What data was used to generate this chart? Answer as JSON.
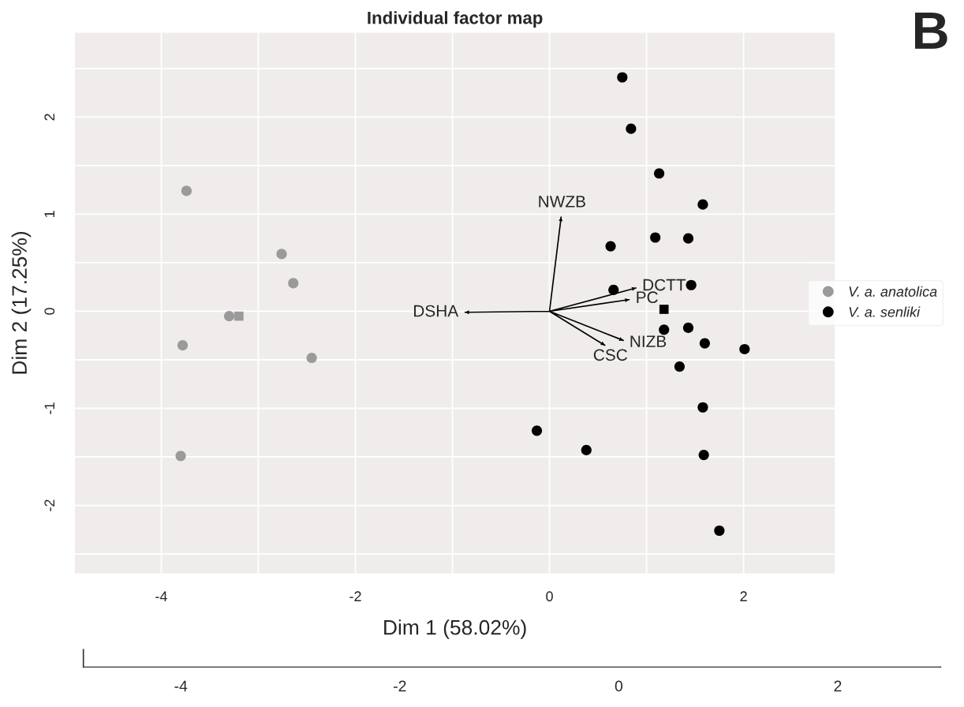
{
  "chart_data": {
    "type": "scatter",
    "title": "Individual factor map",
    "xlabel": "Dim 1 (58.02%)",
    "ylabel": "Dim 2 (17.25%)",
    "series": [
      {
        "name": "V. a. anatolica",
        "color": "#9a9a9a",
        "marker": "circle",
        "x": [
          -3.74,
          -2.76,
          -2.64,
          -3.3,
          -3.78,
          -2.45,
          -3.8
        ],
        "values": [
          1.24,
          0.59,
          0.29,
          -0.05,
          -0.35,
          -0.48,
          -1.49
        ]
      },
      {
        "name": "V. a. senliki",
        "color": "#000000",
        "marker": "circle",
        "x": [
          0.75,
          0.84,
          1.13,
          1.58,
          1.09,
          1.43,
          0.63,
          1.46,
          0.66,
          1.18,
          1.43,
          1.6,
          2.01,
          1.34,
          1.58,
          -0.13,
          0.38,
          1.59,
          1.75
        ],
        "values": [
          2.41,
          1.88,
          1.42,
          1.1,
          0.76,
          0.75,
          0.67,
          0.27,
          0.22,
          -0.19,
          -0.17,
          -0.33,
          -0.39,
          -0.57,
          -0.99,
          -1.23,
          -1.43,
          -1.48,
          -2.26
        ]
      },
      {
        "color": "#9a9a9a",
        "marker": "square",
        "x": [
          -3.2
        ],
        "values": [
          -0.05
        ]
      },
      {
        "color": "#000000",
        "marker": "square",
        "x": [
          1.18
        ],
        "values": [
          0.02
        ]
      },
      {
        "type": "line",
        "color": "#000000",
        "x": [
          0,
          0.12,
          null,
          0,
          0.89,
          null,
          0,
          0.82,
          null,
          0,
          0.76,
          null,
          0,
          0.57,
          null,
          0,
          -0.87
        ],
        "values": [
          0,
          0.97,
          null,
          0,
          0.24,
          null,
          0,
          0.12,
          null,
          0,
          -0.3,
          null,
          0,
          -0.35,
          null,
          0,
          -0.01
        ]
      }
    ],
    "annotations": [
      {
        "text": "NWZB",
        "x": 0.12,
        "y": 0.97
      },
      {
        "text": "DCTT",
        "x": 0.89,
        "y": 0.24
      },
      {
        "text": "PC",
        "x": 0.82,
        "y": 0.12
      },
      {
        "text": "NIZB",
        "x": 0.76,
        "y": -0.3
      },
      {
        "text": "CSC",
        "x": 0.57,
        "y": -0.35
      },
      {
        "text": "DSHA",
        "x": -0.87,
        "y": -0.01
      },
      "B"
    ],
    "xlim": [
      -4.89,
      2.94
    ],
    "ylim": [
      -2.7,
      2.87
    ],
    "xticks": [
      -4,
      -2,
      0,
      2
    ],
    "yticks": [
      -2,
      -1,
      0,
      1,
      2
    ],
    "x2lim": [
      -4.89,
      2.94
    ],
    "x2ticks": [
      -4,
      -2,
      0,
      2
    ],
    "grid": true,
    "legend": "right"
  }
}
